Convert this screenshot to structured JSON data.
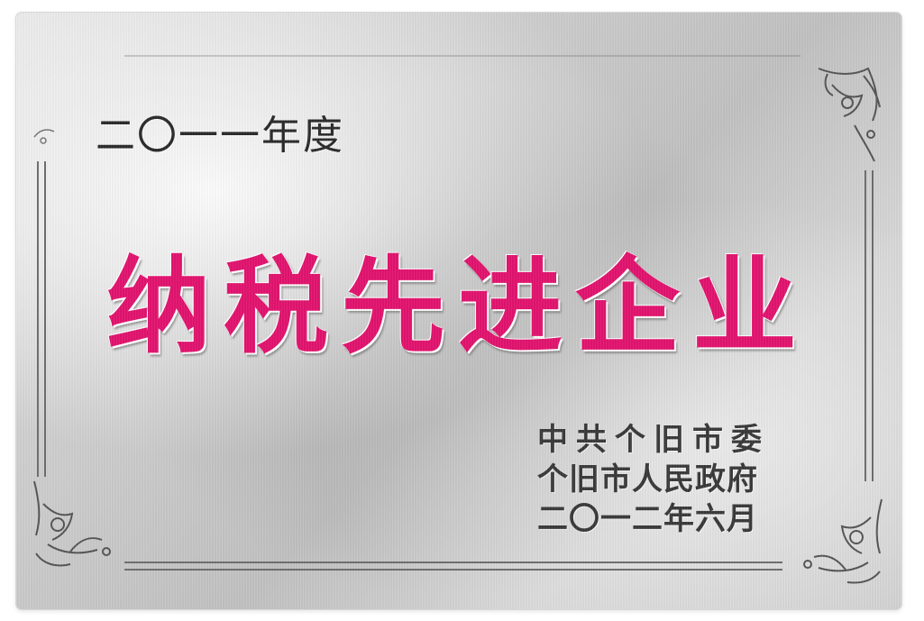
{
  "plaque": {
    "year_heading": "二〇一一年度",
    "award_title": "纳税先进企业",
    "issuer_line_1": "中共个旧市委",
    "issuer_line_2": "个旧市人民政府",
    "date_line": "二〇一二年六月"
  },
  "colors": {
    "title": "#e3146f",
    "text": "#2b2b2b",
    "plate": "#cfcfcf"
  }
}
